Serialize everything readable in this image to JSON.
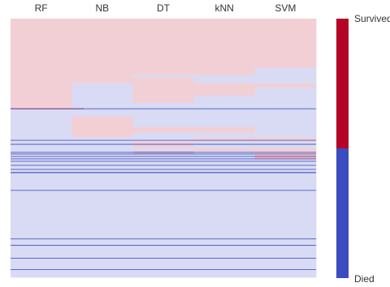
{
  "chart_data": {
    "type": "heatmap",
    "title": "",
    "xlabel": "",
    "ylabel": "",
    "columns": [
      "RF",
      "NB",
      "DT",
      "kNN",
      "SVM"
    ],
    "row_count": 320,
    "value_encoding": {
      "0": "Died",
      "1": "Survived"
    },
    "colorbar": {
      "labels": [
        {
          "text": "Survived",
          "value": 1
        },
        {
          "text": "Died",
          "value": 0
        }
      ],
      "placement": "right",
      "high_color": "#b40426",
      "low_color": "#3b4cc0"
    },
    "row_runs": [
      {
        "rows": [
          0,
          60
        ],
        "values": [
          1,
          1,
          1,
          1,
          1
        ]
      },
      {
        "rows": [
          61,
          69
        ],
        "values": [
          1,
          1,
          1,
          1,
          0
        ]
      },
      {
        "rows": [
          70,
          72
        ],
        "values": [
          1,
          1,
          0,
          0,
          0
        ]
      },
      {
        "rows": [
          73,
          79
        ],
        "values": [
          1,
          1,
          1,
          0,
          0
        ]
      },
      {
        "rows": [
          80,
          84
        ],
        "values": [
          1,
          0,
          1,
          1,
          1
        ]
      },
      {
        "rows": [
          85,
          94
        ],
        "values": [
          1,
          0,
          1,
          1,
          0
        ]
      },
      {
        "rows": [
          95,
          103
        ],
        "values": [
          1,
          0,
          1,
          0,
          0
        ]
      },
      {
        "rows": [
          104,
          110
        ],
        "values": [
          1,
          0,
          0,
          0,
          0
        ]
      },
      {
        "rows": [
          111,
          111
        ],
        "values": [
          1,
          0,
          0,
          0,
          0
        ]
      },
      {
        "rows": [
          112,
          120
        ],
        "values": [
          0,
          0,
          0,
          0,
          0
        ]
      },
      {
        "rows": [
          121,
          133
        ],
        "values": [
          0,
          1,
          0,
          0,
          0
        ]
      },
      {
        "rows": [
          134,
          140
        ],
        "values": [
          0,
          1,
          1,
          1,
          0
        ]
      },
      {
        "rows": [
          141,
          146
        ],
        "values": [
          0,
          1,
          0,
          0,
          0
        ]
      },
      {
        "rows": [
          147,
          151
        ],
        "values": [
          0,
          0,
          0,
          1,
          1
        ]
      },
      {
        "rows": [
          152,
          159
        ],
        "values": [
          0,
          0,
          1,
          0,
          0
        ]
      },
      {
        "rows": [
          160,
          163
        ],
        "values": [
          0,
          0,
          0,
          1,
          1
        ]
      },
      {
        "rows": [
          164,
          168
        ],
        "values": [
          0,
          0,
          0,
          0,
          1
        ]
      },
      {
        "rows": [
          169,
          174
        ],
        "values": [
          0,
          0,
          0,
          0,
          1
        ]
      },
      {
        "rows": [
          175,
          319
        ],
        "values": [
          0,
          0,
          0,
          0,
          0
        ]
      }
    ],
    "row_separators": [
      111,
      150,
      155,
      165,
      167,
      170,
      173,
      176,
      181,
      186,
      190,
      212,
      272,
      280,
      296,
      310
    ]
  }
}
